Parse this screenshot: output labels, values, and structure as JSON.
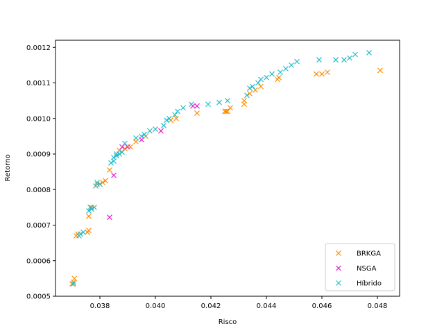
{
  "chart_data": {
    "type": "scatter",
    "xlabel": "Risco",
    "ylabel": "Retorno",
    "xlim": [
      0.0364,
      0.0488
    ],
    "ylim": [
      0.0005,
      0.00122
    ],
    "x_ticks": [
      0.038,
      0.04,
      0.042,
      0.044,
      0.046,
      0.048
    ],
    "x_tick_labels": [
      "0.038",
      "0.040",
      "0.042",
      "0.044",
      "0.046",
      "0.048"
    ],
    "y_ticks": [
      0.0005,
      0.0006,
      0.0007,
      0.0008,
      0.0009,
      0.001,
      0.0011,
      0.0012
    ],
    "y_tick_labels": [
      "0.0005",
      "0.0006",
      "0.0007",
      "0.0008",
      "0.0009",
      "0.0010",
      "0.0011",
      "0.0012"
    ],
    "grid": false,
    "legend_position": "bottom-right",
    "series": [
      {
        "name": "BRKGA",
        "color": "#ff8c00",
        "marker": "x",
        "points": [
          [
            0.037,
            0.000535
          ],
          [
            0.03705,
            0.00054
          ],
          [
            0.03708,
            0.00055
          ],
          [
            0.03715,
            0.00067
          ],
          [
            0.0372,
            0.000675
          ],
          [
            0.03755,
            0.00068
          ],
          [
            0.0376,
            0.000685
          ],
          [
            0.0376,
            0.000725
          ],
          [
            0.0377,
            0.00075
          ],
          [
            0.0379,
            0.000815
          ],
          [
            0.0381,
            0.00082
          ],
          [
            0.0382,
            0.000825
          ],
          [
            0.03835,
            0.000855
          ],
          [
            0.0387,
            0.00091
          ],
          [
            0.0389,
            0.000915
          ],
          [
            0.0391,
            0.00092
          ],
          [
            0.0393,
            0.000935
          ],
          [
            0.03965,
            0.00095
          ],
          [
            0.04,
            0.00097
          ],
          [
            0.0403,
            0.00098
          ],
          [
            0.04055,
            0.000995
          ],
          [
            0.04075,
            0.001
          ],
          [
            0.0415,
            0.001015
          ],
          [
            0.0425,
            0.00102
          ],
          [
            0.04255,
            0.00102
          ],
          [
            0.0426,
            0.00102
          ],
          [
            0.0427,
            0.00103
          ],
          [
            0.0432,
            0.00105
          ],
          [
            0.0432,
            0.00104
          ],
          [
            0.0434,
            0.00107
          ],
          [
            0.0436,
            0.00108
          ],
          [
            0.0438,
            0.00109
          ],
          [
            0.0444,
            0.00111
          ],
          [
            0.04445,
            0.001115
          ],
          [
            0.0458,
            0.001125
          ],
          [
            0.046,
            0.001125
          ],
          [
            0.0462,
            0.00113
          ],
          [
            0.0481,
            0.001135
          ]
        ]
      },
      {
        "name": "NSGA",
        "color": "#dd22cc",
        "marker": "x",
        "points": [
          [
            0.03835,
            0.000722
          ],
          [
            0.0385,
            0.00084
          ],
          [
            0.0388,
            0.00092
          ],
          [
            0.039,
            0.00092
          ],
          [
            0.0395,
            0.00094
          ],
          [
            0.0402,
            0.000965
          ],
          [
            0.04135,
            0.001035
          ],
          [
            0.0415,
            0.001035
          ]
        ]
      },
      {
        "name": "Híbrido",
        "color": "#22bbcc",
        "marker": "x",
        "points": [
          [
            0.03705,
            0.000535
          ],
          [
            0.03725,
            0.00067
          ],
          [
            0.0373,
            0.000675
          ],
          [
            0.0374,
            0.00068
          ],
          [
            0.0376,
            0.00074
          ],
          [
            0.03765,
            0.00075
          ],
          [
            0.0377,
            0.000745
          ],
          [
            0.0378,
            0.00075
          ],
          [
            0.03785,
            0.00081
          ],
          [
            0.0379,
            0.00082
          ],
          [
            0.038,
            0.000815
          ],
          [
            0.0384,
            0.000875
          ],
          [
            0.0385,
            0.00088
          ],
          [
            0.0385,
            0.00089
          ],
          [
            0.0386,
            0.000895
          ],
          [
            0.0386,
            0.0009
          ],
          [
            0.0387,
            0.0009
          ],
          [
            0.0388,
            0.000905
          ],
          [
            0.0389,
            0.00093
          ],
          [
            0.0393,
            0.000945
          ],
          [
            0.0395,
            0.00095
          ],
          [
            0.0396,
            0.000955
          ],
          [
            0.0398,
            0.000965
          ],
          [
            0.04,
            0.00097
          ],
          [
            0.0403,
            0.00098
          ],
          [
            0.0404,
            0.000995
          ],
          [
            0.0405,
            0.001
          ],
          [
            0.0407,
            0.00101
          ],
          [
            0.0408,
            0.00102
          ],
          [
            0.041,
            0.00103
          ],
          [
            0.0413,
            0.00104
          ],
          [
            0.0419,
            0.00104
          ],
          [
            0.0423,
            0.001045
          ],
          [
            0.0426,
            0.00105
          ],
          [
            0.0433,
            0.001065
          ],
          [
            0.0434,
            0.001085
          ],
          [
            0.0435,
            0.00109
          ],
          [
            0.0437,
            0.0011
          ],
          [
            0.0438,
            0.00111
          ],
          [
            0.044,
            0.001115
          ],
          [
            0.0442,
            0.001125
          ],
          [
            0.0445,
            0.00113
          ],
          [
            0.0447,
            0.00114
          ],
          [
            0.0449,
            0.00115
          ],
          [
            0.0451,
            0.00116
          ],
          [
            0.0459,
            0.001165
          ],
          [
            0.0465,
            0.001165
          ],
          [
            0.0468,
            0.001165
          ],
          [
            0.047,
            0.00117
          ],
          [
            0.0472,
            0.00118
          ],
          [
            0.0477,
            0.001185
          ]
        ]
      }
    ]
  }
}
